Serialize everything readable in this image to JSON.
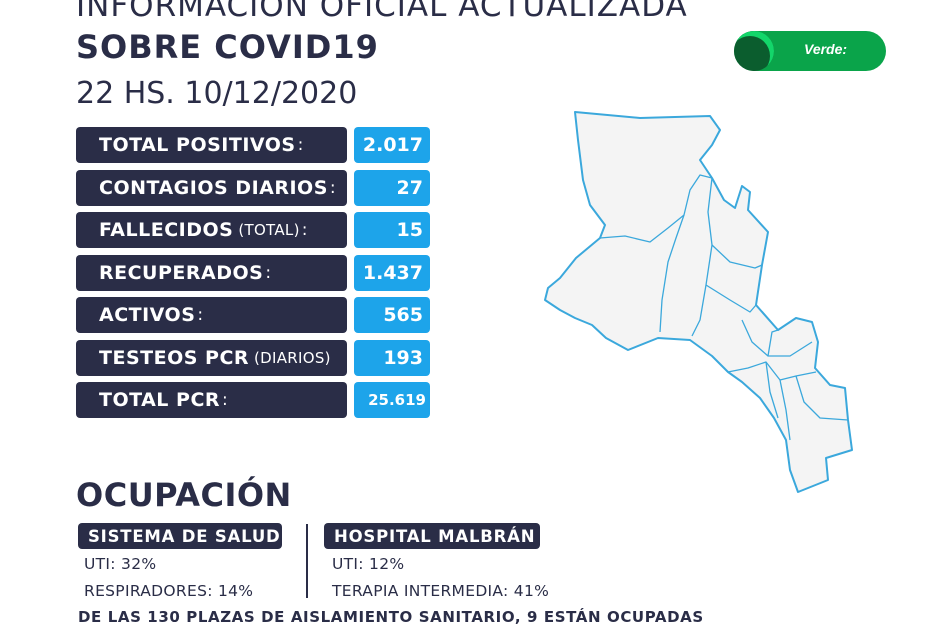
{
  "header": {
    "title_line1": "INFORMACIÓN OFICIAL ACTUALIZADA",
    "title_line2": "SOBRE COVID19",
    "datetime": "22 HS. 10/12/2020"
  },
  "status": {
    "label": "Verde:",
    "color": "#0aa44a"
  },
  "stats": [
    {
      "label": "TOTAL POSITIVOS",
      "suffix": "",
      "value": "2.017"
    },
    {
      "label": "CONTAGIOS DIARIOS",
      "suffix": "",
      "value": "27"
    },
    {
      "label": "FALLECIDOS",
      "suffix": "(TOTAL)",
      "value": "15"
    },
    {
      "label": "RECUPERADOS",
      "suffix": "",
      "value": "1.437"
    },
    {
      "label": "ACTIVOS",
      "suffix": "",
      "value": "565"
    },
    {
      "label": "TESTEOS PCR",
      "suffix": "(DIARIOS)",
      "value": "193"
    },
    {
      "label": "TOTAL PCR",
      "suffix": "",
      "value": "25.619"
    }
  ],
  "occupancy": {
    "title": "OCUPACIÓN",
    "sistema_salud": {
      "label": "SISTEMA DE SALUD",
      "uti": "UTI: 32%",
      "respiradores": "RESPIRADORES: 14%"
    },
    "hospital_malbran": {
      "label": "HOSPITAL MALBRÁN",
      "uti": "UTI: 12%",
      "terapia": "TERAPIA INTERMEDIA: 41%"
    }
  },
  "footer": {
    "text": "DE LAS 130 PLAZAS DE AISLAMIENTO SANITARIO, 9 ESTÁN OCUPADAS"
  },
  "colors": {
    "navy": "#2a2d47",
    "blue": "#1da4ea",
    "green": "#0aa44a",
    "map_fill": "#f4f4f4",
    "map_stroke": "#3ba8dc"
  }
}
